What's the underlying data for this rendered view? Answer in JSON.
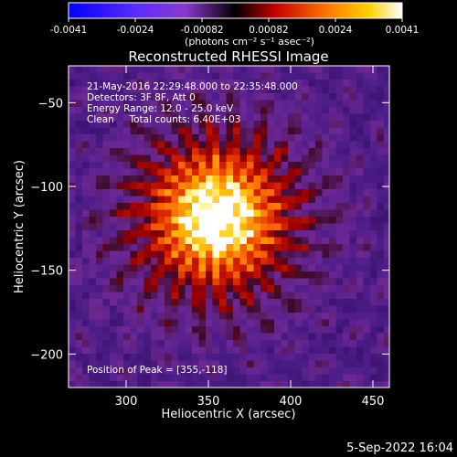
{
  "colorbar": {
    "ticks": [
      "-0.0041",
      "-0.0024",
      "-0.00082",
      "0.00082",
      "0.0024",
      "0.0041"
    ],
    "units_label": "(photons cm⁻² s⁻¹ asec⁻²)"
  },
  "chart_data": {
    "type": "heatmap",
    "title": "Reconstructed RHESSI Image",
    "xlabel": "Heliocentric X (arcsec)",
    "ylabel": "Heliocentric Y (arcsec)",
    "xlim": [
      265,
      460
    ],
    "ylim": [
      -220,
      -28
    ],
    "xticks": [
      300,
      350,
      400,
      450
    ],
    "yticks": [
      -50,
      -100,
      -150,
      -200
    ],
    "clim": [
      -0.0041,
      0.0041
    ],
    "peak": [
      355,
      -118
    ],
    "colormap": "rainbow",
    "annotations": [
      "21-May-2016 22:29:48.000 to 22:35:48.000",
      "Detectors: 3F 8F, Att 0",
      "Energy Range: 12.0 - 25.0 keV",
      "Clean     Total counts: 6.40E+03"
    ],
    "peak_label": "Position of Peak = [355,-118]"
  },
  "footer": {
    "timestamp": "5-Sep-2022 16:04"
  }
}
